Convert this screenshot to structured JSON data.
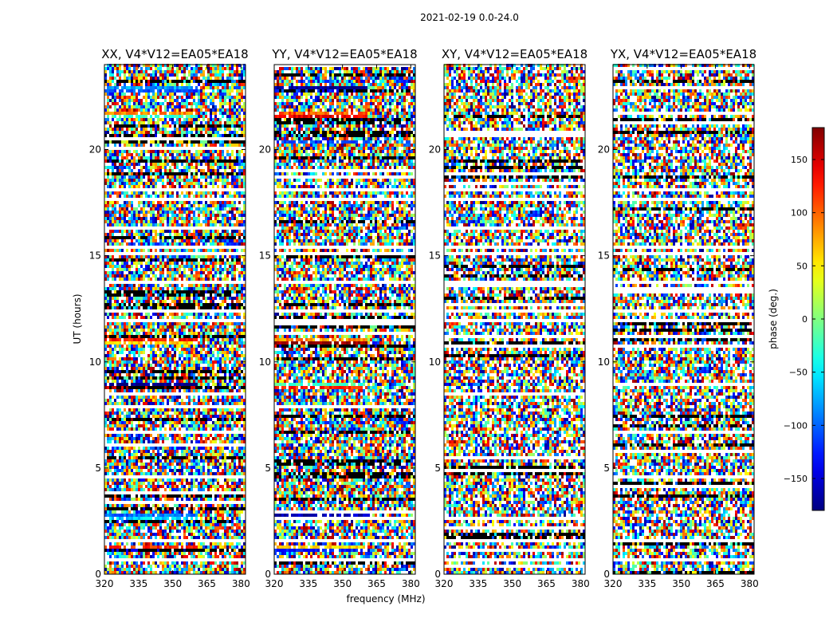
{
  "suptitle": "2021-02-19 0.0-24.0",
  "chart_data": {
    "type": "heatmap",
    "shared_xlabel": "frequency (MHz)",
    "shared_ylabel": "UT (hours)",
    "xlim": [
      320,
      382
    ],
    "ylim": [
      0,
      24
    ],
    "x_ticks": [
      320,
      335,
      350,
      365,
      380
    ],
    "y_ticks": [
      0,
      5,
      10,
      15,
      20
    ],
    "panels": [
      {
        "title": "XX, V4*V12=EA05*EA18",
        "pol": "XX"
      },
      {
        "title": "YY, V4*V12=EA05*EA18",
        "pol": "YY"
      },
      {
        "title": "XY, V4*V12=EA05*EA18",
        "pol": "XY"
      },
      {
        "title": "YX, V4*V12=EA05*EA18",
        "pol": "YX"
      }
    ],
    "colorbar": {
      "label": "phase (deg.)",
      "range": [
        -180,
        180
      ],
      "ticks": [
        -150,
        -100,
        -50,
        0,
        50,
        100,
        150
      ],
      "tick_labels": [
        "−150",
        "−100",
        "−50",
        "0",
        "50",
        "100",
        "150"
      ],
      "colormap": "jet"
    },
    "flagged_ut_bands": [
      [
        0.55,
        0.68
      ],
      [
        1.45,
        1.62
      ],
      [
        6.0,
        6.08
      ],
      [
        11.8,
        12.0
      ],
      [
        12.35,
        12.5
      ],
      [
        13.6,
        13.75
      ],
      [
        15.0,
        15.12
      ],
      [
        15.3,
        15.45
      ],
      [
        17.55,
        17.75
      ],
      [
        18.05,
        18.2
      ],
      [
        22.35,
        22.45
      ]
    ],
    "coherent_ut_bands": [
      [
        1.0,
        1.3
      ],
      [
        2.6,
        2.9
      ],
      [
        8.75,
        8.95
      ],
      [
        10.75,
        11.1
      ],
      [
        20.35,
        20.5
      ],
      [
        21.5,
        21.75
      ],
      [
        22.7,
        23.0
      ]
    ]
  }
}
